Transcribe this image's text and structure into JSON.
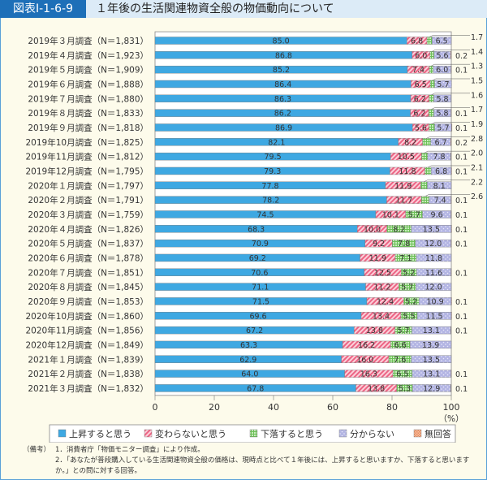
{
  "header": {
    "figure_id": "図表Ⅰ-1-6-9",
    "title": "１年後の生活関連物資全般の物価動向について"
  },
  "chart_data": {
    "type": "bar",
    "orientation": "horizontal-stacked-100",
    "categories": [
      "2019年３月調査（N＝1,831）",
      "2019年４月調査（N＝1,923）",
      "2019年５月調査（N＝1,909）",
      "2019年６月調査（N＝1,888）",
      "2019年７月調査（N＝1,880）",
      "2019年８月調査（N＝1,833）",
      "2019年９月調査（N＝1,818）",
      "2019年10月調査（N＝1,825）",
      "2019年11月調査（N＝1,812）",
      "2019年12月調査（N＝1,795）",
      "2020年１月調査（N＝1,797）",
      "2020年２月調査（N＝1,791）",
      "2020年３月調査（N＝1,759）",
      "2020年４月調査（N＝1,826）",
      "2020年５月調査（N＝1,837）",
      "2020年６月調査（N＝1,878）",
      "2020年７月調査（N＝1,851）",
      "2020年８月調査（N＝1,845）",
      "2020年９月調査（N＝1,853）",
      "2020年10月調査（N＝1,860）",
      "2020年11月調査（N＝1,856）",
      "2020年12月調査（N＝1,849）",
      "2021年１月調査（N＝1,839）",
      "2021年２月調査（N＝1,838）",
      "2021年３月調査（N＝1,832）"
    ],
    "series": [
      {
        "name": "上昇すると思う",
        "color": "#3ea8e2",
        "values": [
          85.0,
          86.8,
          85.2,
          86.4,
          86.3,
          86.2,
          86.9,
          82.1,
          79.5,
          79.3,
          77.8,
          78.2,
          74.5,
          68.3,
          70.9,
          69.2,
          70.6,
          71.1,
          71.5,
          69.6,
          67.2,
          63.3,
          62.9,
          64.0,
          67.8
        ]
      },
      {
        "name": "変わらないと思う",
        "color": "#f17b95",
        "values": [
          6.8,
          6.0,
          7.4,
          6.5,
          6.2,
          6.2,
          5.6,
          8.2,
          10.5,
          11.8,
          11.9,
          11.7,
          10.1,
          10.0,
          9.2,
          11.9,
          12.5,
          11.2,
          12.4,
          13.4,
          13.8,
          16.2,
          16.0,
          16.3,
          13.8
        ]
      },
      {
        "name": "下落すると思う",
        "color": "#8ccf78",
        "values": [
          1.7,
          1.4,
          1.3,
          1.5,
          1.6,
          1.7,
          1.9,
          2.8,
          2.0,
          2.1,
          2.2,
          2.6,
          5.7,
          8.2,
          7.8,
          7.1,
          5.2,
          5.7,
          5.2,
          5.5,
          5.7,
          6.6,
          7.6,
          6.5,
          5.3
        ]
      },
      {
        "name": "分からない",
        "color": "#aeb0e0",
        "values": [
          6.5,
          5.6,
          6.0,
          5.7,
          5.8,
          5.8,
          5.7,
          6.7,
          7.8,
          6.8,
          8.1,
          7.4,
          9.6,
          13.5,
          12.0,
          11.8,
          11.6,
          12.0,
          10.9,
          11.5,
          13.1,
          13.9,
          13.5,
          13.1,
          12.9
        ]
      },
      {
        "name": "無回答",
        "color": "#f0a27c",
        "values": [
          null,
          0.2,
          0.1,
          null,
          null,
          0.1,
          0.1,
          0.2,
          0.1,
          0.1,
          null,
          0.1,
          0.1,
          0.1,
          0.1,
          null,
          0.1,
          null,
          0.1,
          0.1,
          0.1,
          null,
          null,
          0.1,
          0.1
        ]
      }
    ],
    "xlim": [
      0,
      100
    ],
    "xticks": [
      "0",
      "20",
      "40",
      "60",
      "80",
      "100"
    ],
    "xunit": "（%）",
    "legend_position": "bottom",
    "grid": false
  },
  "notes": {
    "label": "（備考）",
    "items": [
      "1．消費者庁「物価モニター調査」により作成。",
      "2．「あなたが普段購入している生活関連物資全般の価格は、現時点と比べて１年後には、上昇すると思いますか、下落すると思いますか。」との問に対する回答。"
    ]
  }
}
